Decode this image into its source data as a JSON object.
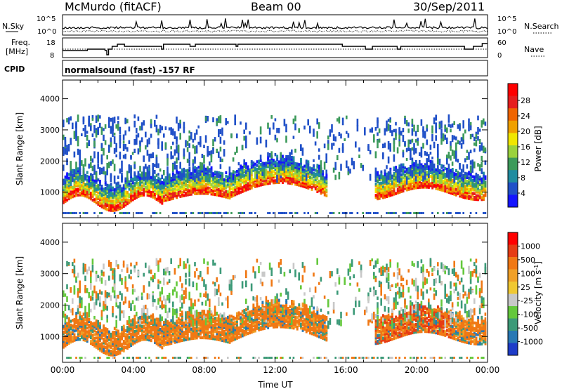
{
  "header": {
    "station": "McMurdo (fitACF)",
    "beam": "Beam 00",
    "date": "30/Sep/2011"
  },
  "status_panels": {
    "nsky_label": "N.Sky",
    "nsky_ticks": [
      "10^5",
      "10^0"
    ],
    "nsearch_label": "N.Search",
    "nsearch_ticks": [
      "10^5",
      "10^0"
    ],
    "freq_label_1": "Freq.",
    "freq_label_2": "[MHz]",
    "freq_ticks": [
      "18",
      "8"
    ],
    "nave_label": "Nave",
    "nave_ticks": [
      "60",
      "0"
    ],
    "cpid_label": "CPID",
    "cpid_text": "normalsound (fast) -157 RF"
  },
  "chart_data": [
    {
      "type": "heatmap",
      "name": "power-panel",
      "ylabel": "Slant Range [km]",
      "yticks": [
        "1000",
        "2000",
        "3000",
        "4000"
      ],
      "ylim": [
        180,
        4600
      ],
      "xlim": [
        0,
        24
      ],
      "colorbar_label": "Power [dB]",
      "colorbar_ticks": [
        "4",
        "8",
        "12",
        "16",
        "20",
        "24",
        "28"
      ],
      "colorbar_colors": [
        "#1414ff",
        "#2050c8",
        "#208ca0",
        "#3c9a5a",
        "#9ad23c",
        "#f0e600",
        "#f0a000",
        "#f06400",
        "#e61e1e",
        "#ff0000"
      ]
    },
    {
      "type": "heatmap",
      "name": "velocity-panel",
      "ylabel": "Slant Range [km]",
      "yticks": [
        "1000",
        "2000",
        "3000",
        "4000"
      ],
      "ylim": [
        180,
        4600
      ],
      "xlim": [
        0,
        24
      ],
      "xlabel": "Time UT",
      "xticks": [
        "00:00",
        "04:00",
        "08:00",
        "12:00",
        "16:00",
        "20:00",
        "00:00"
      ],
      "colorbar_label": "Velocity [m s^-1]",
      "colorbar_ticks": [
        "1000",
        "500",
        "100",
        "25",
        "-25",
        "-100",
        "-500",
        "-1000"
      ],
      "colorbar_colors": [
        "#1e3cc8",
        "#2878b4",
        "#3c9a78",
        "#64c83c",
        "#c8c8c8",
        "#f0c832",
        "#f0a028",
        "#f07814",
        "#e63c14",
        "#ff0000"
      ]
    }
  ]
}
